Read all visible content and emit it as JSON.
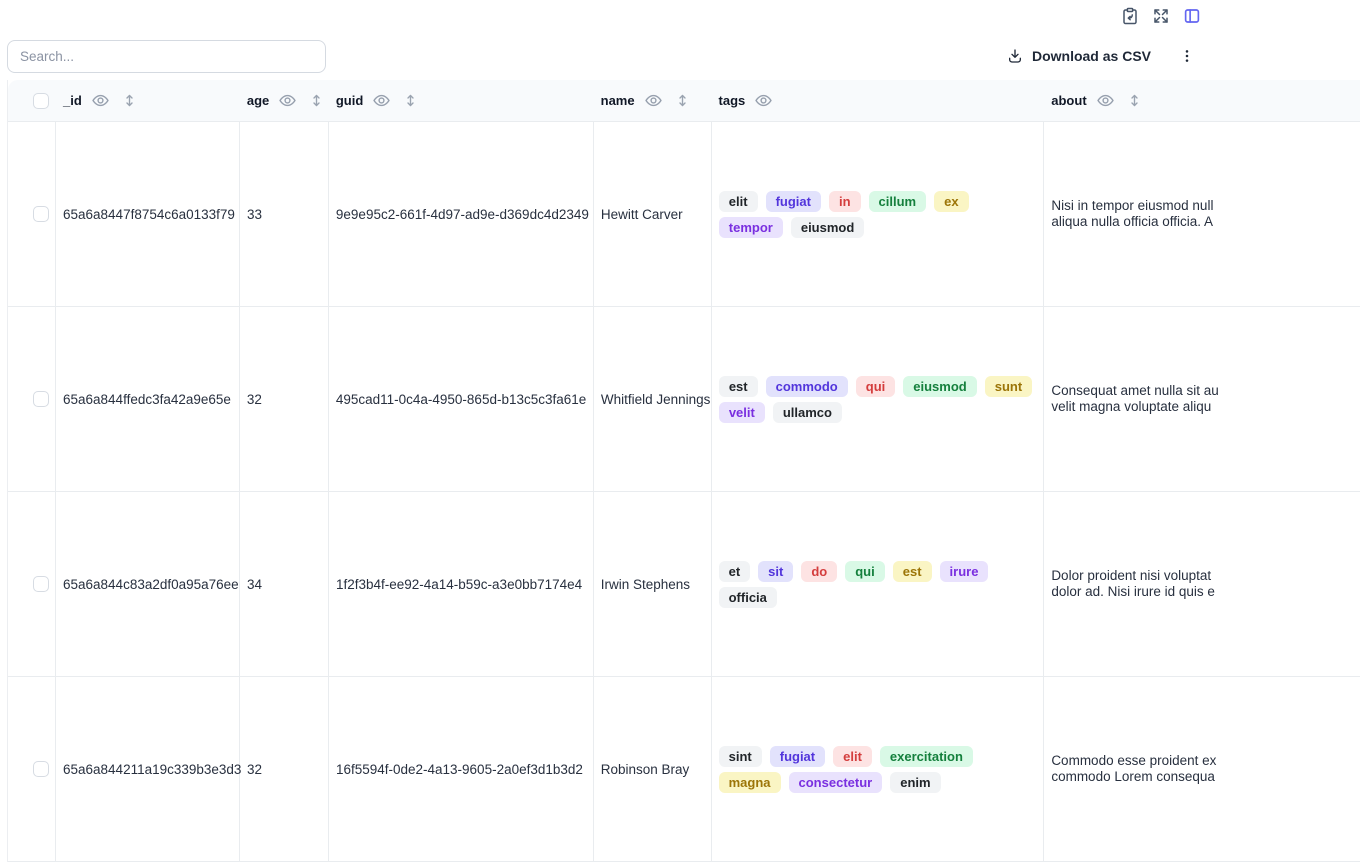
{
  "colors": {
    "accent": "#6366f1",
    "header_bg": "#f8fafc",
    "border": "#e9ecef",
    "tag_palette": {
      "gray": {
        "bg": "#f1f3f5",
        "text": "#212529"
      },
      "indigo": {
        "bg": "#e2e2fc",
        "text": "#5235dc"
      },
      "red": {
        "bg": "#fde3e3",
        "text": "#d43d3d"
      },
      "green": {
        "bg": "#d9f9e6",
        "text": "#15803d"
      },
      "yellow": {
        "bg": "#faf5c4",
        "text": "#9c7508"
      },
      "violet": {
        "bg": "#e9e2fd",
        "text": "#7a2fe0"
      }
    }
  },
  "topbar": {
    "icons": [
      "clipboard",
      "expand",
      "table-view"
    ]
  },
  "toolbar": {
    "search_placeholder": "Search...",
    "download_label": "Download as CSV"
  },
  "table": {
    "columns": [
      {
        "key": "_id",
        "label": "_id",
        "sortable": true
      },
      {
        "key": "age",
        "label": "age",
        "sortable": true
      },
      {
        "key": "guid",
        "label": "guid",
        "sortable": true
      },
      {
        "key": "name",
        "label": "name",
        "sortable": true
      },
      {
        "key": "tags",
        "label": "tags",
        "sortable": false
      },
      {
        "key": "about",
        "label": "about",
        "sortable": true
      }
    ],
    "rows": [
      {
        "_id": "65a6a8447f8754c6a0133f79",
        "age": "33",
        "guid": "9e9e95c2-661f-4d97-ad9e-d369dc4d2349",
        "name": "Hewitt Carver",
        "tags": [
          {
            "text": "elit",
            "color": "gray"
          },
          {
            "text": "fugiat",
            "color": "indigo"
          },
          {
            "text": "in",
            "color": "red"
          },
          {
            "text": "cillum",
            "color": "green"
          },
          {
            "text": "ex",
            "color": "yellow"
          },
          {
            "text": "tempor",
            "color": "violet"
          },
          {
            "text": "eiusmod",
            "color": "gray"
          }
        ],
        "about": "Nisi in tempor eiusmod null\naliqua nulla officia officia. A"
      },
      {
        "_id": "65a6a844ffedc3fa42a9e65e",
        "age": "32",
        "guid": "495cad11-0c4a-4950-865d-b13c5c3fa61e",
        "name": "Whitfield Jennings",
        "tags": [
          {
            "text": "est",
            "color": "gray"
          },
          {
            "text": "commodo",
            "color": "indigo"
          },
          {
            "text": "qui",
            "color": "red"
          },
          {
            "text": "eiusmod",
            "color": "green"
          },
          {
            "text": "sunt",
            "color": "yellow"
          },
          {
            "text": "velit",
            "color": "violet"
          },
          {
            "text": "ullamco",
            "color": "gray"
          }
        ],
        "about": "Consequat amet nulla sit au\nvelit magna voluptate aliqu"
      },
      {
        "_id": "65a6a844c83a2df0a95a76ee",
        "age": "34",
        "guid": "1f2f3b4f-ee92-4a14-b59c-a3e0bb7174e4",
        "name": "Irwin Stephens",
        "tags": [
          {
            "text": "et",
            "color": "gray"
          },
          {
            "text": "sit",
            "color": "indigo"
          },
          {
            "text": "do",
            "color": "red"
          },
          {
            "text": "qui",
            "color": "green"
          },
          {
            "text": "est",
            "color": "yellow"
          },
          {
            "text": "irure",
            "color": "violet"
          },
          {
            "text": "officia",
            "color": "gray"
          }
        ],
        "about": "Dolor proident nisi voluptat\ndolor ad. Nisi irure id quis e"
      },
      {
        "_id": "65a6a844211a19c339b3e3d3",
        "age": "32",
        "guid": "16f5594f-0de2-4a13-9605-2a0ef3d1b3d2",
        "name": "Robinson Bray",
        "tags": [
          {
            "text": "sint",
            "color": "gray"
          },
          {
            "text": "fugiat",
            "color": "indigo"
          },
          {
            "text": "elit",
            "color": "red"
          },
          {
            "text": "exercitation",
            "color": "green"
          },
          {
            "text": "magna",
            "color": "yellow"
          },
          {
            "text": "consectetur",
            "color": "violet"
          },
          {
            "text": "enim",
            "color": "gray"
          }
        ],
        "about": "Commodo esse proident ex\ncommodo Lorem consequa"
      }
    ]
  }
}
